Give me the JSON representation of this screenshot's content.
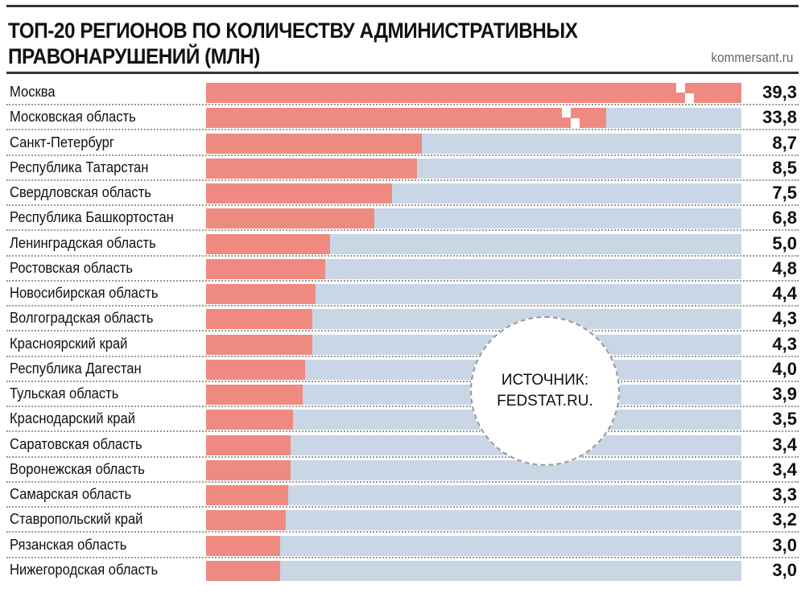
{
  "chart_data": {
    "type": "bar",
    "orientation": "horizontal",
    "title": "ТОП-20 РЕГИОНОВ ПО КОЛИЧЕСТВУ АДМИНИСТРАТИВНЫХ ПРАВОНАРУШЕНИЙ (МЛН)",
    "source_site": "kommersant.ru",
    "annotation": [
      "ИСТОЧНИК:",
      "FEDSTAT.RU."
    ],
    "categories": [
      "Москва",
      "Московская область",
      "Санкт-Петербург",
      "Республика Татарстан",
      "Свердловская область",
      "Республика Башкортостан",
      "Ленинградская область",
      "Ростовская область",
      "Новосибирская область",
      "Волгоградская область",
      "Красноярский край",
      "Республика Дагестан",
      "Тульская область",
      "Краснодарский край",
      "Саратовская область",
      "Воронежская область",
      "Самарская область",
      "Ставропольский край",
      "Рязанская область",
      "Нижегородская область"
    ],
    "values": [
      39.3,
      33.8,
      8.7,
      8.5,
      7.5,
      6.8,
      5.0,
      4.8,
      4.4,
      4.3,
      4.3,
      4.0,
      3.9,
      3.5,
      3.4,
      3.4,
      3.3,
      3.2,
      3.0,
      3.0
    ],
    "value_labels": [
      "39,3",
      "33,8",
      "8,7",
      "8,5",
      "7,5",
      "6,8",
      "5,0",
      "4,8",
      "4,4",
      "4,3",
      "4,3",
      "4,0",
      "3,9",
      "3,5",
      "3,4",
      "3,4",
      "3,3",
      "3,2",
      "3,0",
      "3,0"
    ],
    "broken_bars": [
      "Москва",
      "Московская область"
    ],
    "colors": {
      "bar": "#ef8a80",
      "track": "#c9d6e6"
    }
  }
}
